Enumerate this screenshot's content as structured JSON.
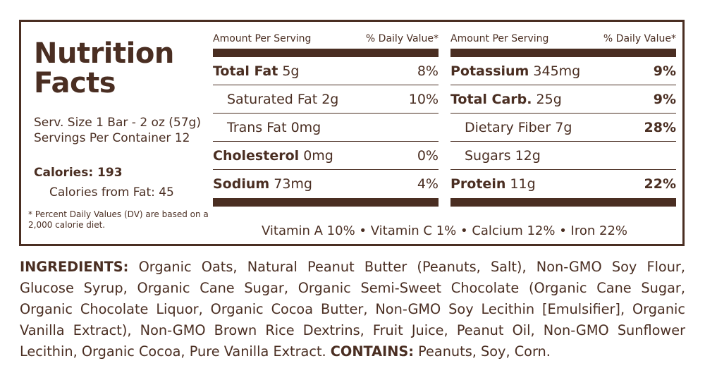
{
  "label": {
    "title_line1": "Nutrition",
    "title_line2": "Facts",
    "serving_size": "Serv. Size 1 Bar - 2 oz (57g)",
    "servings_per_container": "Servings Per Container 12",
    "calories": "Calories: 193",
    "calories_from_fat": "Calories from Fat: 45",
    "dv_note": "* Percent Daily Values (DV) are based on a 2,000 calorie diet.",
    "header_amount": "Amount Per Serving",
    "header_dv": "% Daily Value*",
    "left_rows": [
      {
        "name": "Total Fat",
        "amount": "5g",
        "dv": "8%",
        "bold": true
      },
      {
        "name": "Saturated Fat",
        "amount": "2g",
        "dv": "10%",
        "bold": false
      },
      {
        "name": "Trans Fat",
        "amount": "0mg",
        "dv": "",
        "bold": false
      },
      {
        "name": "Cholesterol",
        "amount": "0mg",
        "dv": "0%",
        "bold": true
      },
      {
        "name": "Sodium",
        "amount": "73mg",
        "dv": "4%",
        "bold": true
      }
    ],
    "right_rows": [
      {
        "name": "Potassium",
        "amount": "345mg",
        "dv": "9%",
        "bold": true
      },
      {
        "name": "Total Carb.",
        "amount": "25g",
        "dv": "9%",
        "bold": true
      },
      {
        "name": "Dietary Fiber",
        "amount": "7g",
        "dv": "28%",
        "bold": false
      },
      {
        "name": "Sugars",
        "amount": "12g",
        "dv": "",
        "bold": false
      },
      {
        "name": "Protein",
        "amount": "11g",
        "dv": "22%",
        "bold": true
      }
    ],
    "vitamins": "Vitamin A 10% • Vitamin C 1% • Calcium 12% • Iron 22%"
  },
  "ingredients": {
    "label": "INGREDIENTS:",
    "text": " Organic Oats, Natural Peanut Butter (Peanuts, Salt), Non-GMO Soy Flour, Glucose Syrup, Organic Cane Sugar, Organic Semi-Sweet Chocolate (Organic Cane Sugar, Organic Chocolate Liquor, Organic Cocoa Butter, Non-GMO Soy Lecithin [Emulsifier], Organic Vanilla Extract), Non-GMO Brown Rice Dextrins, Fruit Juice, Peanut Oil, Non-GMO Sunflower Lecithin, Organic Cocoa, Pure Vanilla Extract.",
    "contains_label": "CONTAINS:",
    "contains_text": " Peanuts, Soy, Corn."
  },
  "colors": {
    "brown": "#4a2e22",
    "background": "#ffffff"
  }
}
